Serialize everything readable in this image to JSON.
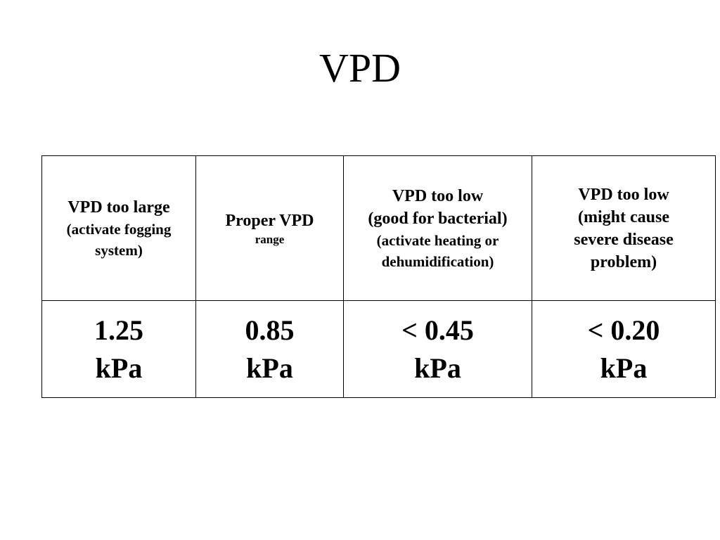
{
  "title": "VPD",
  "table": {
    "headers": [
      {
        "lines": [
          {
            "text": "VPD too large",
            "size": "lg"
          },
          {
            "text": "(activate fogging",
            "size": "md"
          },
          {
            "text": "system)",
            "size": "md"
          }
        ]
      },
      {
        "lines": [
          {
            "text": "Proper VPD",
            "size": "lg"
          },
          {
            "text": "range",
            "size": "sm"
          }
        ]
      },
      {
        "lines": [
          {
            "text": "VPD too low",
            "size": "lg"
          },
          {
            "text": "(good for bacterial)",
            "size": "lg"
          },
          {
            "text": "(activate heating or",
            "size": "md"
          },
          {
            "text": "dehumidification)",
            "size": "md"
          }
        ]
      },
      {
        "lines": [
          {
            "text": "VPD too low",
            "size": "lg"
          },
          {
            "text": "(might cause",
            "size": "lg"
          },
          {
            "text": "severe disease",
            "size": "lg"
          },
          {
            "text": "problem)",
            "size": "lg"
          }
        ]
      }
    ],
    "values": [
      [
        "1.25",
        "kPa"
      ],
      [
        "0.85",
        "kPa"
      ],
      [
        "< 0.45",
        "kPa"
      ],
      [
        "< 0.20",
        "kPa"
      ]
    ]
  }
}
